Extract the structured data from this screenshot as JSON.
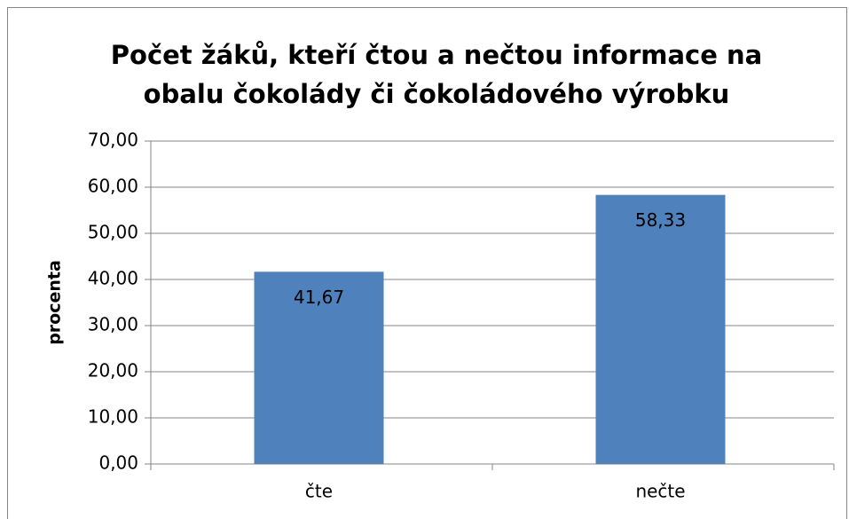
{
  "chart_data": {
    "type": "bar",
    "title": [
      "Počet žáků, kteří čtou a nečtou informace na",
      "obalu čokolády či čokoládového výrobku"
    ],
    "y_label": "procenta",
    "categories": [
      "čte",
      "nečte"
    ],
    "values": [
      41.67,
      58.33
    ],
    "value_labels": [
      "41,67",
      "58,33"
    ],
    "color": "#4f81bd",
    "ylim": [
      0,
      70
    ],
    "yticks": [
      {
        "value": 0,
        "label": "0,00"
      },
      {
        "value": 10,
        "label": "10,00"
      },
      {
        "value": 20,
        "label": "20,00"
      },
      {
        "value": 30,
        "label": "30,00"
      },
      {
        "value": 40,
        "label": "40,00"
      },
      {
        "value": 50,
        "label": "50,00"
      },
      {
        "value": 60,
        "label": "60,00"
      },
      {
        "value": 70,
        "label": "70,00"
      }
    ],
    "grid": true
  }
}
